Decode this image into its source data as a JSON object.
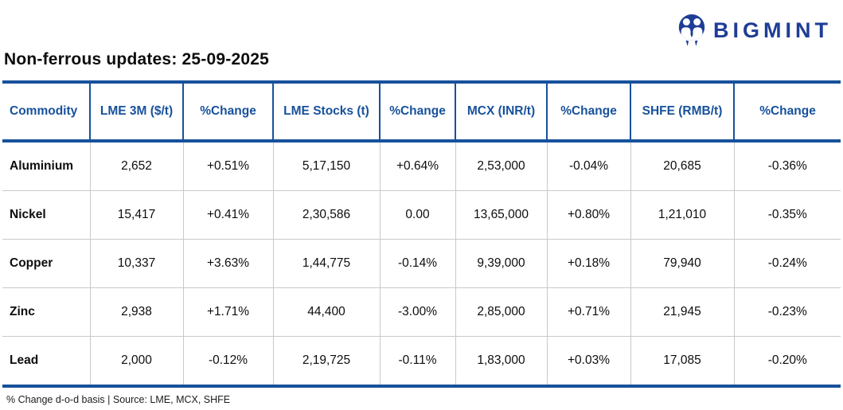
{
  "brand": {
    "name": "BIGMINT"
  },
  "colors": {
    "brand_navy": "#1e3d96",
    "header_blue": "#17519c",
    "positive": "#16b269",
    "negative": "#f5141b",
    "grid_gray": "#c9c9c9"
  },
  "chart_data": {
    "type": "table",
    "title": "Non-ferrous updates: 25-09-2025",
    "columns": [
      "Commodity",
      "LME 3M ($/t)",
      "%Change",
      "LME Stocks (t)",
      "%Change",
      "MCX (INR/t)",
      "%Change",
      "SHFE (RMB/t)",
      "%Change"
    ],
    "rows": [
      {
        "cells": [
          "Aluminium",
          "2,652",
          "+0.51%",
          "5,17,150",
          "+0.64%",
          "2,53,000",
          "-0.04%",
          "20,685",
          "-0.36%"
        ],
        "tones": [
          "label",
          "neutral",
          "pos",
          "neutral",
          "pos",
          "neutral",
          "neg",
          "neutral",
          "neg"
        ]
      },
      {
        "cells": [
          "Nickel",
          "15,417",
          "+0.41%",
          "2,30,586",
          "0.00",
          "13,65,000",
          "+0.80%",
          "1,21,010",
          "-0.35%"
        ],
        "tones": [
          "label",
          "neutral",
          "pos",
          "neutral",
          "neutral",
          "neutral",
          "pos",
          "neutral",
          "neg"
        ]
      },
      {
        "cells": [
          "Copper",
          "10,337",
          "+3.63%",
          "1,44,775",
          "-0.14%",
          "9,39,000",
          "+0.18%",
          "79,940",
          "-0.24%"
        ],
        "tones": [
          "label",
          "neutral",
          "pos",
          "neutral",
          "neg",
          "neutral",
          "pos",
          "neutral",
          "neg"
        ]
      },
      {
        "cells": [
          "Zinc",
          "2,938",
          "+1.71%",
          "44,400",
          "-3.00%",
          "2,85,000",
          "+0.71%",
          "21,945",
          "-0.23%"
        ],
        "tones": [
          "label",
          "neutral",
          "pos",
          "neutral",
          "neg",
          "neutral",
          "pos",
          "neutral",
          "neg"
        ]
      },
      {
        "cells": [
          "Lead",
          "2,000",
          "-0.12%",
          "2,19,725",
          "-0.11%",
          "1,83,000",
          "+0.03%",
          "17,085",
          "-0.20%"
        ],
        "tones": [
          "label",
          "neutral",
          "neg",
          "neutral",
          "neg",
          "neutral",
          "pos",
          "neutral",
          "neg"
        ]
      }
    ],
    "footnote": "% Change d-o-d basis | Source: LME, MCX, SHFE"
  }
}
